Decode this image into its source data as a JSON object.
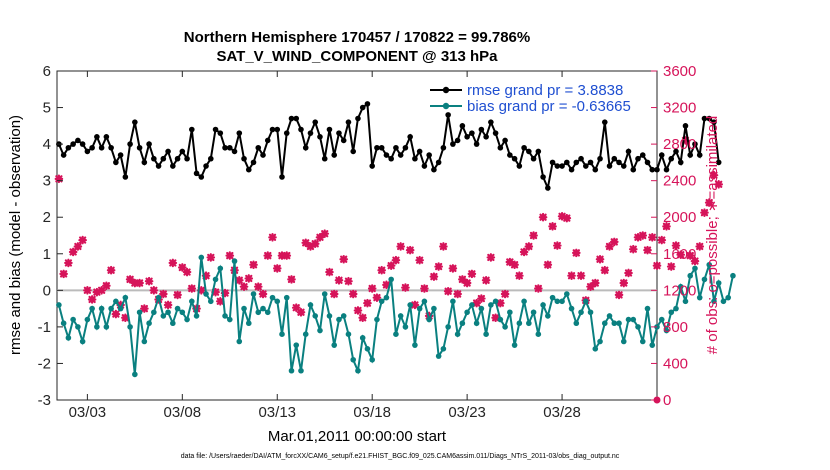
{
  "chart_data": {
    "type": "line",
    "title_line1": "Northern Hemisphere 170457 / 170822 = 99.786%",
    "title_line2": "SAT_V_WIND_COMPONENT @ 313 hPa",
    "ylabel_left": "rmse and bias (model - observation)",
    "ylabel_right": "# of obs: o=possible; ∗=assimilated",
    "xlabel": "Mar.01,2011 00:00:00 start",
    "footer": "data file: /Users/raeder/DAI/ATM_forcXX/CAM6_setup/f.e21.FHIST_BGC.f09_025.CAM6assim.011/Diags_NTrS_2011-03/obs_diag_output.nc",
    "xlim": [
      1.4,
      33.0
    ],
    "ylim_left": [
      -3,
      6
    ],
    "ylim_right": [
      0,
      3600
    ],
    "x_ticks": [
      3,
      8,
      13,
      18,
      23,
      28
    ],
    "x_tick_labels": [
      "03/03",
      "03/08",
      "03/13",
      "03/18",
      "03/23",
      "03/28"
    ],
    "y_left_ticks": [
      -3,
      -2,
      -1,
      0,
      1,
      2,
      3,
      4,
      5,
      6
    ],
    "y_left_tick_labels": [
      "-3",
      "-2",
      "-1",
      "0",
      "1",
      "2",
      "3",
      "4",
      "5",
      "6"
    ],
    "y_right_ticks": [
      0,
      400,
      800,
      1200,
      1600,
      2000,
      2400,
      2800,
      3200,
      3600
    ],
    "y_right_tick_labels": [
      "0",
      "400",
      "800",
      "1200",
      "1600",
      "2000",
      "2400",
      "2800",
      "3200",
      "3600"
    ],
    "legend_position": "top-right",
    "colors": {
      "rmse": "#000000",
      "bias": "#0a8080",
      "obs": "#d6145a",
      "zero_line": "#bbbbbb"
    },
    "series": [
      {
        "name": "rmse grand pr = 3.8838",
        "axis": "left",
        "x_start": 1.5,
        "x_step": 0.25,
        "values": [
          4.0,
          3.7,
          3.9,
          4.0,
          4.1,
          4.0,
          3.8,
          3.9,
          4.2,
          3.9,
          4.2,
          3.9,
          3.5,
          3.7,
          3.1,
          4.0,
          4.6,
          3.9,
          3.5,
          4.0,
          3.6,
          3.4,
          3.6,
          3.8,
          3.4,
          3.6,
          3.8,
          3.6,
          4.4,
          3.2,
          3.1,
          3.4,
          3.6,
          4.4,
          4.3,
          3.9,
          3.9,
          3.8,
          4.3,
          3.6,
          3.3,
          3.5,
          3.9,
          3.7,
          4.1,
          4.4,
          4.4,
          3.1,
          4.3,
          4.7,
          4.7,
          4.4,
          3.9,
          4.3,
          4.6,
          4.2,
          3.6,
          4.4,
          3.7,
          4.3,
          4.1,
          4.6,
          3.8,
          4.7,
          5.0,
          5.1,
          3.4,
          3.9,
          3.9,
          3.7,
          3.6,
          3.9,
          3.7,
          3.9,
          4.2,
          3.6,
          3.8,
          3.4,
          3.7,
          3.3,
          3.5,
          3.9,
          4.8,
          4.0,
          4.1,
          4.5,
          4.2,
          4.3,
          4.0,
          4.4,
          4.2,
          4.6,
          4.3,
          3.9,
          4.1,
          3.7,
          3.6,
          3.4,
          3.9,
          3.8,
          3.6,
          3.8,
          3.1,
          2.8,
          3.5,
          3.4,
          3.4,
          3.5,
          3.3,
          3.5,
          3.6,
          3.4,
          3.5,
          3.3,
          3.6,
          4.6,
          3.4,
          3.6,
          3.5,
          3.4,
          3.8,
          3.3,
          3.6,
          3.7,
          3.5,
          3.3,
          3.3,
          3.7,
          3.3,
          3.6,
          3.8,
          3.5,
          4.5,
          3.7,
          4.0,
          3.7,
          4.7,
          4.7,
          4.6,
          3.5
        ]
      },
      {
        "name": "bias grand pr = -0.63665",
        "axis": "left",
        "x_start": 1.5,
        "x_step": 0.25,
        "values": [
          -0.4,
          -0.9,
          -1.3,
          -0.8,
          -1.0,
          -1.4,
          -0.8,
          -0.5,
          -1.0,
          -0.5,
          -1.0,
          -0.5,
          -0.3,
          -0.5,
          -0.2,
          -1.0,
          -2.3,
          -0.6,
          -1.4,
          -0.9,
          -0.6,
          -0.2,
          -0.7,
          -0.6,
          -0.9,
          -0.5,
          -0.6,
          -0.8,
          -0.3,
          -0.7,
          0.9,
          -0.1,
          -0.3,
          0.3,
          0.6,
          -0.7,
          -0.8,
          0.8,
          -1.4,
          -0.5,
          -0.9,
          -0.1,
          -0.6,
          -0.5,
          -0.6,
          -0.2,
          -0.3,
          -1.2,
          -0.2,
          -2.2,
          -1.5,
          -2.2,
          -1.2,
          -0.4,
          -0.7,
          -1.1,
          -0.1,
          -0.7,
          -1.5,
          -0.8,
          -0.7,
          -1.2,
          -1.9,
          -2.2,
          -1.3,
          -1.6,
          -1.9,
          -0.8,
          -0.3,
          -0.2,
          0.3,
          -1.2,
          -0.7,
          -1.0,
          -0.4,
          -1.5,
          -0.5,
          -0.3,
          -0.8,
          -0.5,
          -1.8,
          -1.6,
          -1.0,
          -0.3,
          -1.2,
          -0.9,
          -0.6,
          -0.4,
          -0.9,
          -0.5,
          -1.2,
          -0.4,
          -0.3,
          -0.8,
          -1.0,
          -0.6,
          -1.5,
          -0.9,
          -0.3,
          -0.9,
          -0.6,
          -1.2,
          -0.4,
          -0.7,
          -0.2,
          -0.3,
          -0.3,
          -0.1,
          -0.5,
          -0.9,
          -0.6,
          -0.3,
          -0.6,
          -1.6,
          -1.4,
          -0.9,
          -0.7,
          -0.9,
          -0.9,
          -1.4,
          -0.8,
          -0.8,
          -1.0,
          -1.4,
          -0.5,
          -1.5,
          -1.0,
          -0.8,
          -1.1,
          -0.6,
          -0.5,
          0.1,
          -0.3,
          0.4,
          0.6,
          -0.2,
          0.3,
          0.7,
          -0.3,
          0.2,
          -0.3,
          -0.2,
          0.4
        ]
      },
      {
        "name": "obs assimilated",
        "axis": "right",
        "x_start": 1.5,
        "x_step": 0.25,
        "values": [
          2420,
          1380,
          1500,
          1620,
          1680,
          1750,
          1200,
          1100,
          1180,
          1200,
          1250,
          1420,
          940,
          1040,
          900,
          1320,
          1280,
          1280,
          1000,
          1300,
          1200,
          1100,
          1160,
          1040,
          1500,
          1150,
          1450,
          1400,
          1220,
          1000,
          1200,
          1360,
          1560,
          1180,
          1080,
          1170,
          1580,
          1420,
          1310,
          1240,
          1330,
          1480,
          1240,
          1160,
          1580,
          1780,
          1440,
          1580,
          1580,
          1320,
          1010,
          960,
          1720,
          1680,
          1710,
          1780,
          1820,
          1400,
          1160,
          1310,
          1540,
          1300,
          1160,
          980,
          900,
          1060,
          1220,
          1120,
          1420,
          1260,
          1470,
          1530,
          1680,
          1230,
          1640,
          1040,
          1530,
          1220,
          920,
          1350,
          1460,
          1680,
          1190,
          1440,
          1160,
          1320,
          1280,
          1380,
          1060,
          1110,
          1310,
          1560,
          900,
          1060,
          1160,
          1510,
          1480,
          1360,
          1620,
          1680,
          1800,
          1220,
          2000,
          1480,
          1900,
          1690,
          2010,
          1990,
          1360,
          1610,
          1360,
          1090,
          1240,
          1280,
          1540,
          1420,
          1680,
          1730,
          1150,
          1280,
          1390,
          1650,
          1780,
          1800,
          1640,
          1780,
          1470,
          1750,
          1900,
          1460,
          1690,
          1590,
          2840,
          1580,
          1520,
          1680,
          2050,
          2160,
          2460,
          2360
        ]
      }
    ]
  }
}
